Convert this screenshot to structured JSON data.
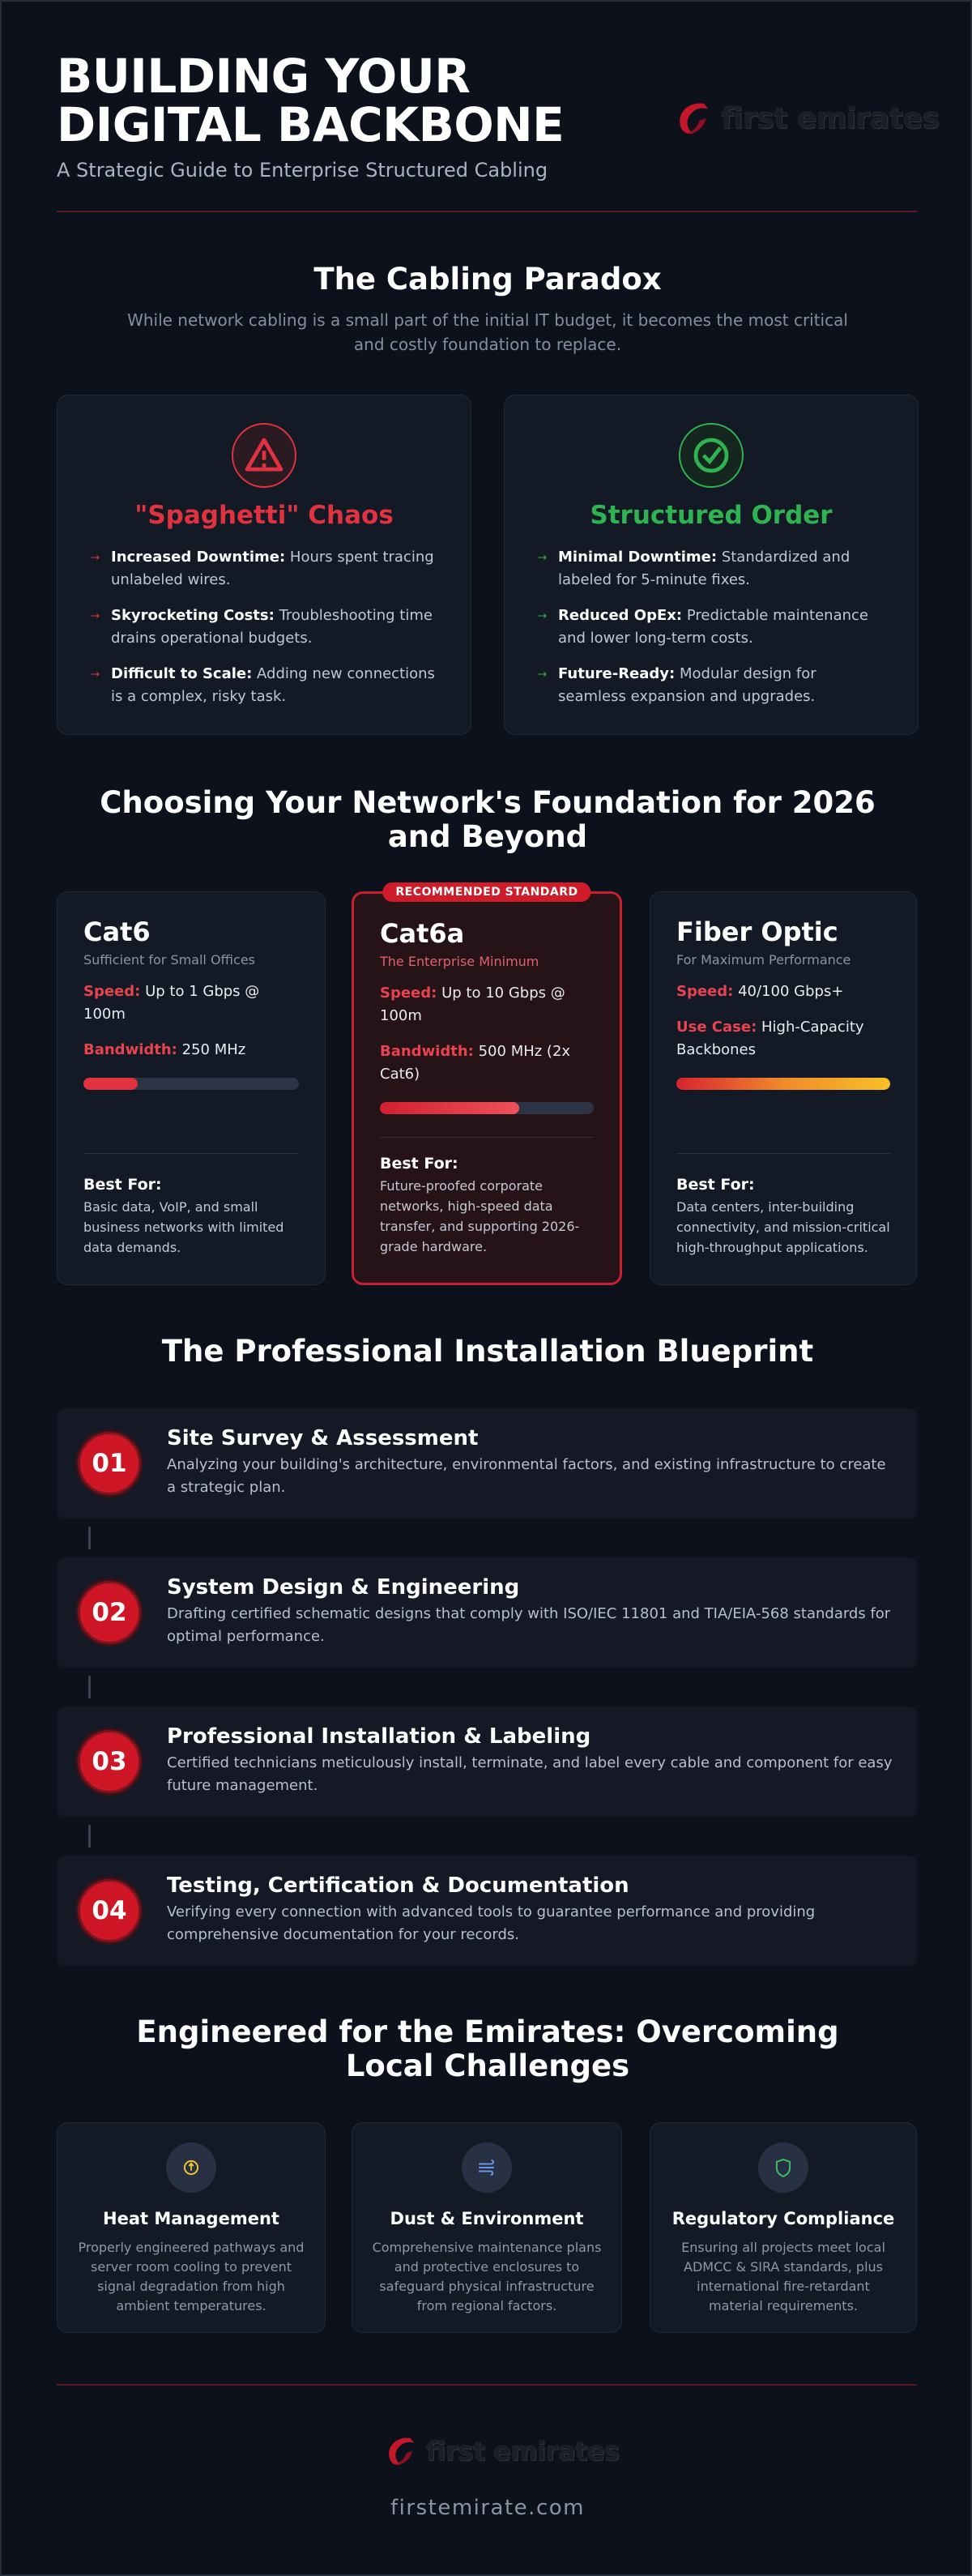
{
  "header": {
    "title_line1": "BUILDING YOUR",
    "title_line2": "DIGITAL BACKBONE",
    "subtitle": "A Strategic Guide to Enterprise Structured Cabling",
    "logo": "first emirates"
  },
  "paradox": {
    "title": "The Cabling Paradox",
    "intro": "While network cabling is a small part of the initial IT budget, it becomes the most critical and costly foundation to replace.",
    "cards": [
      {
        "title": "\"Spaghetti\" Chaos",
        "items": [
          {
            "label": "Increased Downtime:",
            "text": "Hours spent tracing unlabeled wires."
          },
          {
            "label": "Skyrocketing Costs:",
            "text": "Troubleshooting time drains operational budgets."
          },
          {
            "label": "Difficult to Scale:",
            "text": "Adding new connections is a complex, risky task."
          }
        ]
      },
      {
        "title": "Structured Order",
        "items": [
          {
            "label": "Minimal Downtime:",
            "text": "Standardized and labeled for 5-minute fixes."
          },
          {
            "label": "Reduced OpEx:",
            "text": "Predictable maintenance and lower long-term costs."
          },
          {
            "label": "Future-Ready:",
            "text": "Modular design for seamless expansion and upgrades."
          }
        ]
      }
    ]
  },
  "foundation": {
    "title": "Choosing Your Network's Foundation for 2026 and Beyond",
    "cards": [
      {
        "name": "Cat6",
        "tagline": "Sufficient for Small Offices",
        "specs": [
          {
            "label": "Speed:",
            "text": "Up to 1 Gbps @ 100m"
          },
          {
            "label": "Bandwidth:",
            "text": "250 MHz"
          }
        ],
        "best_for_label": "Best For:",
        "best_for": "Basic data, VoIP, and small business networks with limited data demands."
      },
      {
        "badge": "RECOMMENDED STANDARD",
        "name": "Cat6a",
        "tagline": "The Enterprise Minimum",
        "specs": [
          {
            "label": "Speed:",
            "text": "Up to 10 Gbps @ 100m"
          },
          {
            "label": "Bandwidth:",
            "text": "500 MHz (2x Cat6)"
          }
        ],
        "best_for_label": "Best For:",
        "best_for": "Future-proofed corporate networks, high-speed data transfer, and supporting 2026-grade hardware."
      },
      {
        "name": "Fiber Optic",
        "tagline": "For Maximum Performance",
        "specs": [
          {
            "label": "Speed:",
            "text": "40/100 Gbps+"
          },
          {
            "label": "Use Case:",
            "text": "High-Capacity Backbones"
          }
        ],
        "best_for_label": "Best For:",
        "best_for": "Data centers, inter-building connectivity, and mission-critical high-throughput applications."
      }
    ]
  },
  "blueprint": {
    "title": "The Professional Installation Blueprint",
    "steps": [
      {
        "number": "01",
        "title": "Site Survey & Assessment",
        "text": "Analyzing your building's architecture, environmental factors, and existing infrastructure to create a strategic plan."
      },
      {
        "number": "02",
        "title": "System Design & Engineering",
        "text": "Drafting certified schematic designs that comply with ISO/IEC 11801 and TIA/EIA-568 standards for optimal performance."
      },
      {
        "number": "03",
        "title": "Professional Installation & Labeling",
        "text": "Certified technicians meticulously install, terminate, and label every cable and component for easy future management."
      },
      {
        "number": "04",
        "title": "Testing, Certification & Documentation",
        "text": "Verifying every connection with advanced tools to guarantee performance and providing comprehensive documentation for your records."
      }
    ]
  },
  "emirates": {
    "title": "Engineered for the Emirates: Overcoming Local Challenges",
    "cards": [
      {
        "title": "Heat Management",
        "text": "Properly engineered pathways and server room cooling to prevent signal degradation from high ambient temperatures."
      },
      {
        "title": "Dust & Environment",
        "text": "Comprehensive maintenance plans and protective enclosures to safeguard physical infrastructure from regional factors."
      },
      {
        "title": "Regulatory Compliance",
        "text": "Ensuring all projects meet local ADMCC & SIRA standards, plus international fire-retardant material requirements."
      }
    ]
  },
  "footer": {
    "logo": "first emirates",
    "url": "firstemirate.com"
  }
}
